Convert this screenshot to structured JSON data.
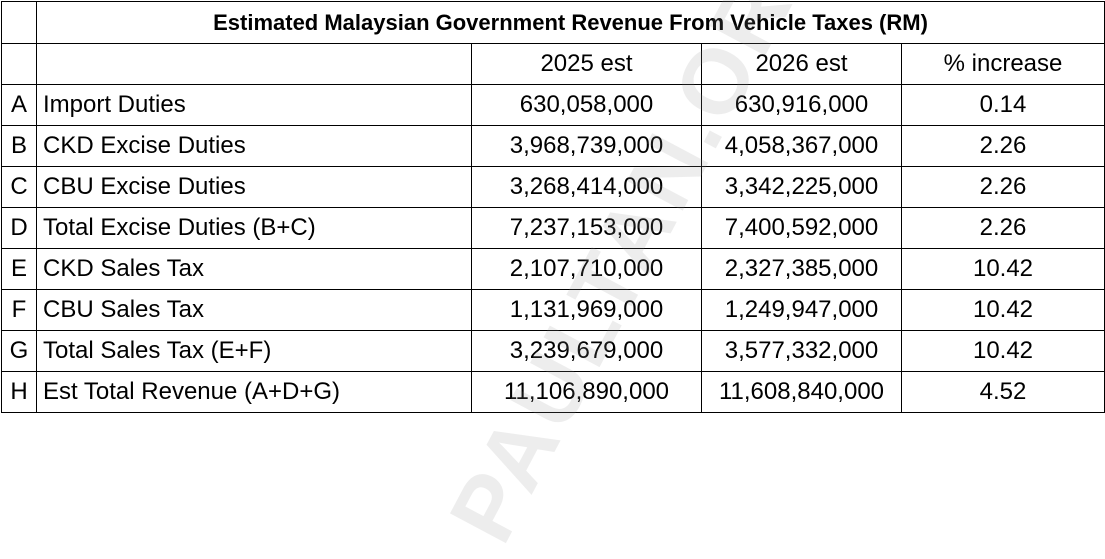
{
  "table": {
    "title": "Estimated Malaysian Government Revenue From Vehicle Taxes (RM)",
    "headers": [
      "",
      "",
      "2025 est",
      "2026 est",
      "% increase"
    ],
    "rows": [
      {
        "letter": "A",
        "label": "Import Duties",
        "y2025": "630,058,000",
        "y2026": "630,916,000",
        "increase": "0.14"
      },
      {
        "letter": "B",
        "label": "CKD Excise Duties",
        "y2025": "3,968,739,000",
        "y2026": "4,058,367,000",
        "increase": "2.26"
      },
      {
        "letter": "C",
        "label": "CBU Excise Duties",
        "y2025": "3,268,414,000",
        "y2026": "3,342,225,000",
        "increase": "2.26"
      },
      {
        "letter": "D",
        "label": "Total Excise Duties (B+C)",
        "y2025": "7,237,153,000",
        "y2026": "7,400,592,000",
        "increase": "2.26"
      },
      {
        "letter": "E",
        "label": "CKD Sales Tax",
        "y2025": "2,107,710,000",
        "y2026": "2,327,385,000",
        "increase": "10.42"
      },
      {
        "letter": "F",
        "label": "CBU Sales Tax",
        "y2025": "1,131,969,000",
        "y2026": "1,249,947,000",
        "increase": "10.42"
      },
      {
        "letter": "G",
        "label": "Total Sales Tax (E+F)",
        "y2025": "3,239,679,000",
        "y2026": "3,577,332,000",
        "increase": "10.42"
      },
      {
        "letter": "H",
        "label": "Est Total Revenue (A+D+G)",
        "y2025": "11,106,890,000",
        "y2026": "11,608,840,000",
        "increase": "4.52"
      }
    ]
  },
  "watermark": "PAULTAN.ORG"
}
